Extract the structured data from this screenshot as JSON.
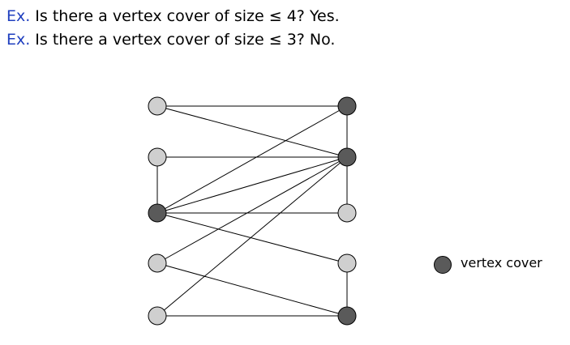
{
  "examples": [
    {
      "prefix": "Ex.",
      "text": "Is there a vertex cover of size ≤ 4?  Yes."
    },
    {
      "prefix": "Ex.",
      "text": "Is there a vertex cover of size ≤ 3?  No."
    }
  ],
  "colors": {
    "prefix": "#1f3fbf",
    "cover_node": "#5a5a5a",
    "other_node": "#cfcfcf",
    "edge": "#000000"
  },
  "graph": {
    "left_nodes": [
      {
        "id": "L1",
        "in_cover": false
      },
      {
        "id": "L2",
        "in_cover": false
      },
      {
        "id": "L3",
        "in_cover": true
      },
      {
        "id": "L4",
        "in_cover": false
      },
      {
        "id": "L5",
        "in_cover": false
      }
    ],
    "right_nodes": [
      {
        "id": "R1",
        "in_cover": true
      },
      {
        "id": "R2",
        "in_cover": true
      },
      {
        "id": "R3",
        "in_cover": false
      },
      {
        "id": "R4",
        "in_cover": false
      },
      {
        "id": "R5",
        "in_cover": true
      }
    ],
    "edges": [
      [
        "L1",
        "R1"
      ],
      [
        "L1",
        "R2"
      ],
      [
        "L2",
        "R2"
      ],
      [
        "L3",
        "R1"
      ],
      [
        "L3",
        "R2"
      ],
      [
        "L3",
        "R3"
      ],
      [
        "L3",
        "R4"
      ],
      [
        "L4",
        "R2"
      ],
      [
        "L4",
        "R5"
      ],
      [
        "L5",
        "R2"
      ],
      [
        "L5",
        "R5"
      ],
      [
        "L2",
        "L3"
      ],
      [
        "R1",
        "R2"
      ],
      [
        "R2",
        "R3"
      ],
      [
        "R4",
        "R5"
      ]
    ]
  },
  "legend": {
    "label": "vertex cover",
    "icon": "filled-circle-icon"
  }
}
